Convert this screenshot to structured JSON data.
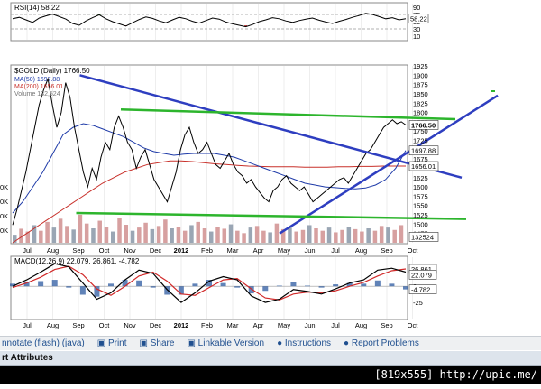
{
  "chart_data": [
    {
      "type": "line",
      "title": "RSI(14) 58.22",
      "series_name": "RSI(14)",
      "last_value": 58.22,
      "ylim": [
        0,
        100
      ],
      "yticks": [
        90,
        70,
        50,
        30,
        10
      ],
      "levels": [
        70,
        30
      ],
      "values": [
        58,
        62,
        55,
        48,
        60,
        66,
        71,
        64,
        57,
        45,
        40,
        52,
        61,
        69,
        58,
        50,
        44,
        38,
        47,
        56,
        63,
        59,
        52,
        47,
        55,
        62,
        58,
        51,
        46,
        53,
        60,
        57,
        49,
        44,
        40,
        36,
        42,
        50,
        55,
        61,
        58,
        52,
        48,
        53,
        57,
        60,
        54,
        49,
        45,
        51,
        56,
        62,
        67,
        73,
        70,
        64,
        58,
        61,
        55,
        58
      ]
    },
    {
      "type": "line",
      "title": "$GOLD (Daily) 1766.50",
      "symbol": "$GOLD (Daily)",
      "last_price": 1766.5,
      "ylim": [
        1450,
        1925
      ],
      "yticks": [
        1925,
        1900,
        1875,
        1850,
        1825,
        1800,
        1775,
        1750,
        1725,
        1700,
        1675,
        1650,
        1625,
        1600,
        1575,
        1550,
        1525,
        1500,
        1475
      ],
      "xlabels": [
        "Jul",
        "Aug",
        "Sep",
        "Oct",
        "Nov",
        "Dec",
        "2012",
        "Feb",
        "Mar",
        "Apr",
        "May",
        "Jun",
        "Jul",
        "Aug",
        "Sep",
        "Oct"
      ],
      "legend": [
        {
          "name": "MA(50)",
          "value": "1697.88",
          "color": "#1e3aa8"
        },
        {
          "name": "MA(200)",
          "value": "1656.01",
          "color": "#c8302a"
        },
        {
          "name": "Volume",
          "value": "132,524",
          "color": "#777777"
        }
      ],
      "price_labels": [
        {
          "label": "1766.50",
          "value": 1766.5
        },
        {
          "label": "1697.88",
          "value": 1697.88
        },
        {
          "label": "1656.01",
          "value": 1656.01
        },
        {
          "label": "132524",
          "value": 1466
        }
      ],
      "series": [
        {
          "name": "Price",
          "color": "#000000",
          "values": [
            1498,
            1540,
            1590,
            1640,
            1700,
            1760,
            1820,
            1860,
            1890,
            1820,
            1760,
            1800,
            1880,
            1840,
            1760,
            1700,
            1640,
            1600,
            1650,
            1620,
            1680,
            1720,
            1700,
            1760,
            1790,
            1760,
            1720,
            1700,
            1650,
            1680,
            1700,
            1660,
            1620,
            1600,
            1580,
            1560,
            1600,
            1640,
            1700,
            1740,
            1760,
            1720,
            1690,
            1700,
            1720,
            1690,
            1660,
            1650,
            1670,
            1690,
            1660,
            1640,
            1630,
            1610,
            1620,
            1600,
            1585,
            1570,
            1560,
            1590,
            1600,
            1620,
            1630,
            1610,
            1600,
            1590,
            1600,
            1580,
            1560,
            1570,
            1580,
            1590,
            1600,
            1610,
            1620,
            1625,
            1610,
            1630,
            1650,
            1670,
            1690,
            1700,
            1720,
            1740,
            1760,
            1770,
            1780,
            1770,
            1775,
            1766.5
          ]
        },
        {
          "name": "MA(50)",
          "color": "#1e3aa8",
          "values": [
            1530,
            1560,
            1600,
            1640,
            1690,
            1740,
            1760,
            1770,
            1765,
            1755,
            1745,
            1735,
            1720,
            1705,
            1695,
            1690,
            1685,
            1688,
            1690,
            1690,
            1690,
            1685,
            1680,
            1670,
            1660,
            1650,
            1640,
            1630,
            1620,
            1610,
            1605,
            1600,
            1598,
            1596,
            1595,
            1597,
            1605,
            1620,
            1650,
            1697.88
          ]
        },
        {
          "name": "MA(200)",
          "color": "#c8302a",
          "values": [
            1450,
            1470,
            1490,
            1510,
            1530,
            1550,
            1570,
            1590,
            1610,
            1625,
            1640,
            1650,
            1660,
            1665,
            1670,
            1670,
            1668,
            1665,
            1662,
            1660,
            1658,
            1656,
            1655,
            1654,
            1654,
            1654,
            1653,
            1653,
            1653,
            1654,
            1654,
            1655,
            1655,
            1656,
            1656,
            1656.01
          ]
        },
        {
          "name": "Volume",
          "color": "#999999",
          "values": [
            20,
            35,
            28,
            44,
            30,
            52,
            38,
            60,
            42,
            33,
            70,
            48,
            36,
            55,
            40,
            28,
            62,
            45,
            30,
            38,
            50,
            34,
            42,
            58,
            36,
            40,
            30,
            44,
            52,
            36,
            28,
            40,
            35,
            46,
            30,
            24,
            38,
            42,
            30,
            26,
            48,
            34,
            40,
            28,
            32,
            44,
            36,
            30,
            38,
            26,
            32,
            40,
            34,
            28,
            36,
            30,
            42,
            38,
            32,
            44
          ]
        }
      ],
      "trendlines": [
        {
          "name": "resistance-blue",
          "color": "#2e3ec0",
          "from": [
            "Aug",
            1900
          ],
          "to": [
            "Oct",
            1625
          ]
        },
        {
          "name": "support-blue",
          "color": "#2e3ec0",
          "from": [
            "May",
            1475
          ],
          "to": [
            "Oct",
            1700
          ]
        },
        {
          "name": "resistance-green",
          "color": "#2db52d",
          "from": [
            "Oct",
            1808
          ],
          "to": [
            "Oct",
            1782
          ]
        },
        {
          "name": "support-green",
          "color": "#2db52d",
          "from": [
            "Aug",
            1530
          ],
          "to": [
            "Oct",
            1514
          ]
        }
      ]
    },
    {
      "type": "line",
      "title": "MACD(12,26,9) 22.079, 26.861, -4.782",
      "series_name": "MACD(12,26,9)",
      "macd": 22.079,
      "signal": 26.861,
      "hist": -4.782,
      "ylim": [
        -50,
        45
      ],
      "yticks": [
        25,
        0,
        -25
      ],
      "price_labels": [
        {
          "label": "26.861",
          "value": 26.861
        },
        {
          "label": "22.079",
          "value": 22.079
        },
        {
          "label": "-4.782",
          "value": -4.782
        }
      ],
      "xlabels": [
        "Jul",
        "Aug",
        "Sep",
        "Oct",
        "Nov",
        "Dec",
        "2012",
        "Feb",
        "Mar",
        "Apr",
        "May",
        "Jun",
        "Jul",
        "Aug",
        "Sep",
        "Oct"
      ],
      "series": [
        {
          "name": "MACD",
          "color": "#000000",
          "values": [
            0,
            10,
            22,
            35,
            30,
            5,
            -20,
            -10,
            10,
            25,
            20,
            -5,
            -25,
            -10,
            8,
            15,
            10,
            -15,
            -25,
            -20,
            -5,
            -8,
            -12,
            -4,
            5,
            10,
            25,
            28,
            22
          ]
        },
        {
          "name": "Signal",
          "color": "#d12a2a",
          "values": [
            -2,
            5,
            14,
            26,
            31,
            18,
            -4,
            -14,
            0,
            16,
            22,
            8,
            -12,
            -14,
            -2,
            10,
            12,
            -4,
            -18,
            -21,
            -12,
            -9,
            -10,
            -7,
            0,
            6,
            16,
            24,
            26.861
          ]
        },
        {
          "name": "Histogram",
          "color": "#2c5aa0",
          "values": [
            4,
            6,
            8,
            10,
            -2,
            -13,
            -16,
            4,
            10,
            9,
            -2,
            -13,
            -13,
            4,
            10,
            5,
            -2,
            -11,
            -7,
            1,
            7,
            1,
            -2,
            3,
            5,
            4,
            9,
            4,
            -4.782
          ]
        }
      ]
    }
  ],
  "toolbar": {
    "annotate": "nnotate (flash) (java)",
    "print": "Print",
    "share": "Share",
    "linkable": "Linkable Version",
    "instructions": "Instructions",
    "report": "Report Problems"
  },
  "attributes_label": "rt Attributes",
  "dimension_text": "[819x555] http://upic.me/",
  "left_ticks": [
    "0K",
    "0K",
    "0K",
    "0K"
  ],
  "colors": {
    "up_bar": "#d7a0a0",
    "down_bar": "#9aa6b4",
    "rsi_fill": "#3d7a34",
    "grid": "#e2e2e2"
  }
}
